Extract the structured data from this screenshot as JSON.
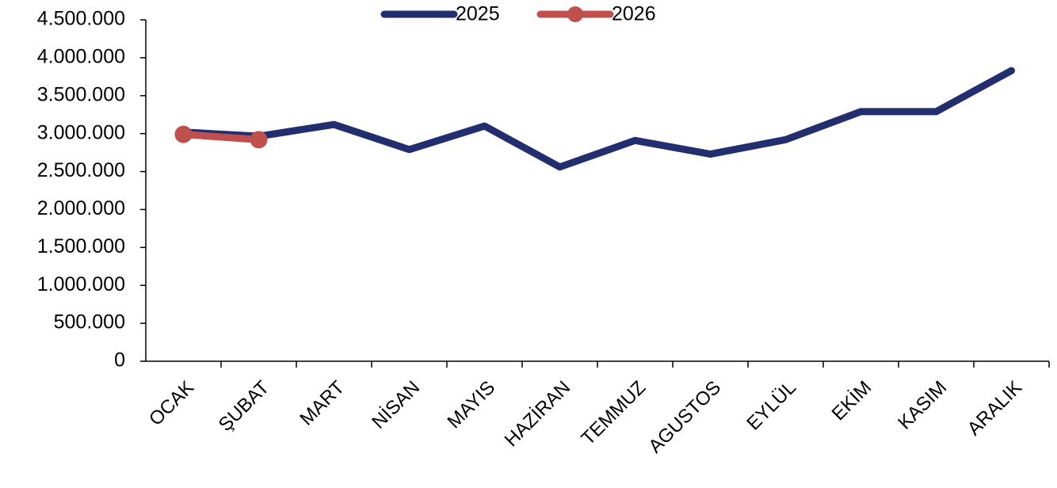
{
  "chart_data": {
    "type": "line",
    "categories": [
      "OCAK",
      "ŞUBAT",
      "MART",
      "NİSAN",
      "MAYIS",
      "HAZİRAN",
      "TEMMUZ",
      "AGUSTOS",
      "EYLÜL",
      "EKİM",
      "KASIM",
      "ARALIK"
    ],
    "series": [
      {
        "name": "2025",
        "color": "#232e6e",
        "marker": false,
        "values": [
          3020000,
          2965000,
          3120000,
          2790000,
          3100000,
          2560000,
          2910000,
          2730000,
          2920000,
          3290000,
          3290000,
          3830000
        ]
      },
      {
        "name": "2026",
        "color": "#c0504d",
        "marker": true,
        "values": [
          2990000,
          2920000,
          null,
          null,
          null,
          null,
          null,
          null,
          null,
          null,
          null,
          null
        ]
      }
    ],
    "ylim": [
      0,
      4500000
    ],
    "yticks": [
      0,
      {
        "value": 500000,
        "label": "500.000"
      },
      {
        "value": 1000000,
        "label": "1.000.000"
      },
      {
        "value": 1500000,
        "label": "1.500.000"
      },
      {
        "value": 2000000,
        "label": "2.000.000"
      },
      {
        "value": 2500000,
        "label": "2.500.000"
      },
      {
        "value": 3000000,
        "label": "3.000.000"
      },
      {
        "value": 3500000,
        "label": "3.500.000"
      },
      {
        "value": 4000000,
        "label": "4.000.000"
      },
      {
        "value": 4500000,
        "label": "4.500.000"
      }
    ],
    "grid": false,
    "legend": "top"
  }
}
